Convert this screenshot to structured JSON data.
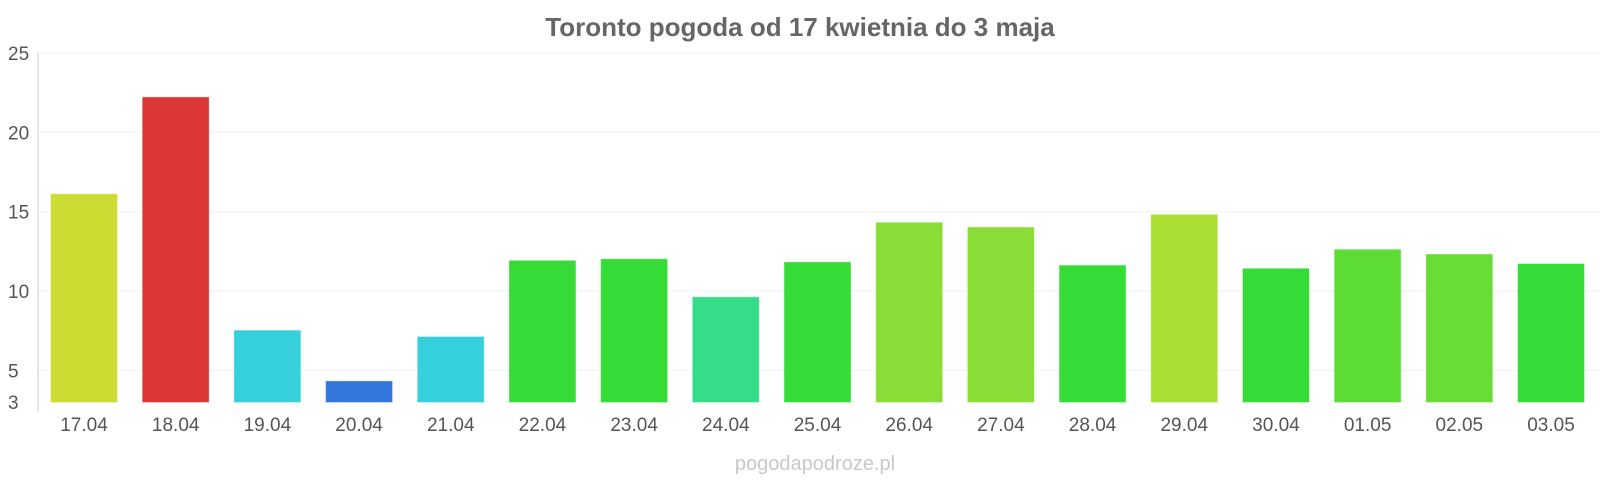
{
  "chart_data": {
    "type": "bar",
    "title": "Toronto pogoda od 17 kwietnia do 3 maja",
    "xlabel": "",
    "ylabel": "",
    "ylim": [
      3,
      25
    ],
    "yticks": [
      3,
      5,
      10,
      15,
      20,
      25
    ],
    "grid": true,
    "categories": [
      "17.04",
      "18.04",
      "19.04",
      "20.04",
      "21.04",
      "22.04",
      "23.04",
      "24.04",
      "25.04",
      "26.04",
      "27.04",
      "28.04",
      "29.04",
      "30.04",
      "01.05",
      "02.05",
      "03.05"
    ],
    "values": [
      16.1,
      22.2,
      7.5,
      4.3,
      7.1,
      11.9,
      12.0,
      9.6,
      11.8,
      14.3,
      14.0,
      11.6,
      14.8,
      11.4,
      12.6,
      12.3,
      11.7
    ],
    "colors": [
      "#cddc33",
      "#dd3636",
      "#36cfdc",
      "#3477dc",
      "#36cfdc",
      "#35dc37",
      "#35dc37",
      "#36dc8a",
      "#35dc37",
      "#89dd36",
      "#89dd36",
      "#35dc37",
      "#aade33",
      "#35dc37",
      "#5ddc36",
      "#68dd36",
      "#35dc37"
    ]
  },
  "watermark": "pogodapodroze.pl"
}
